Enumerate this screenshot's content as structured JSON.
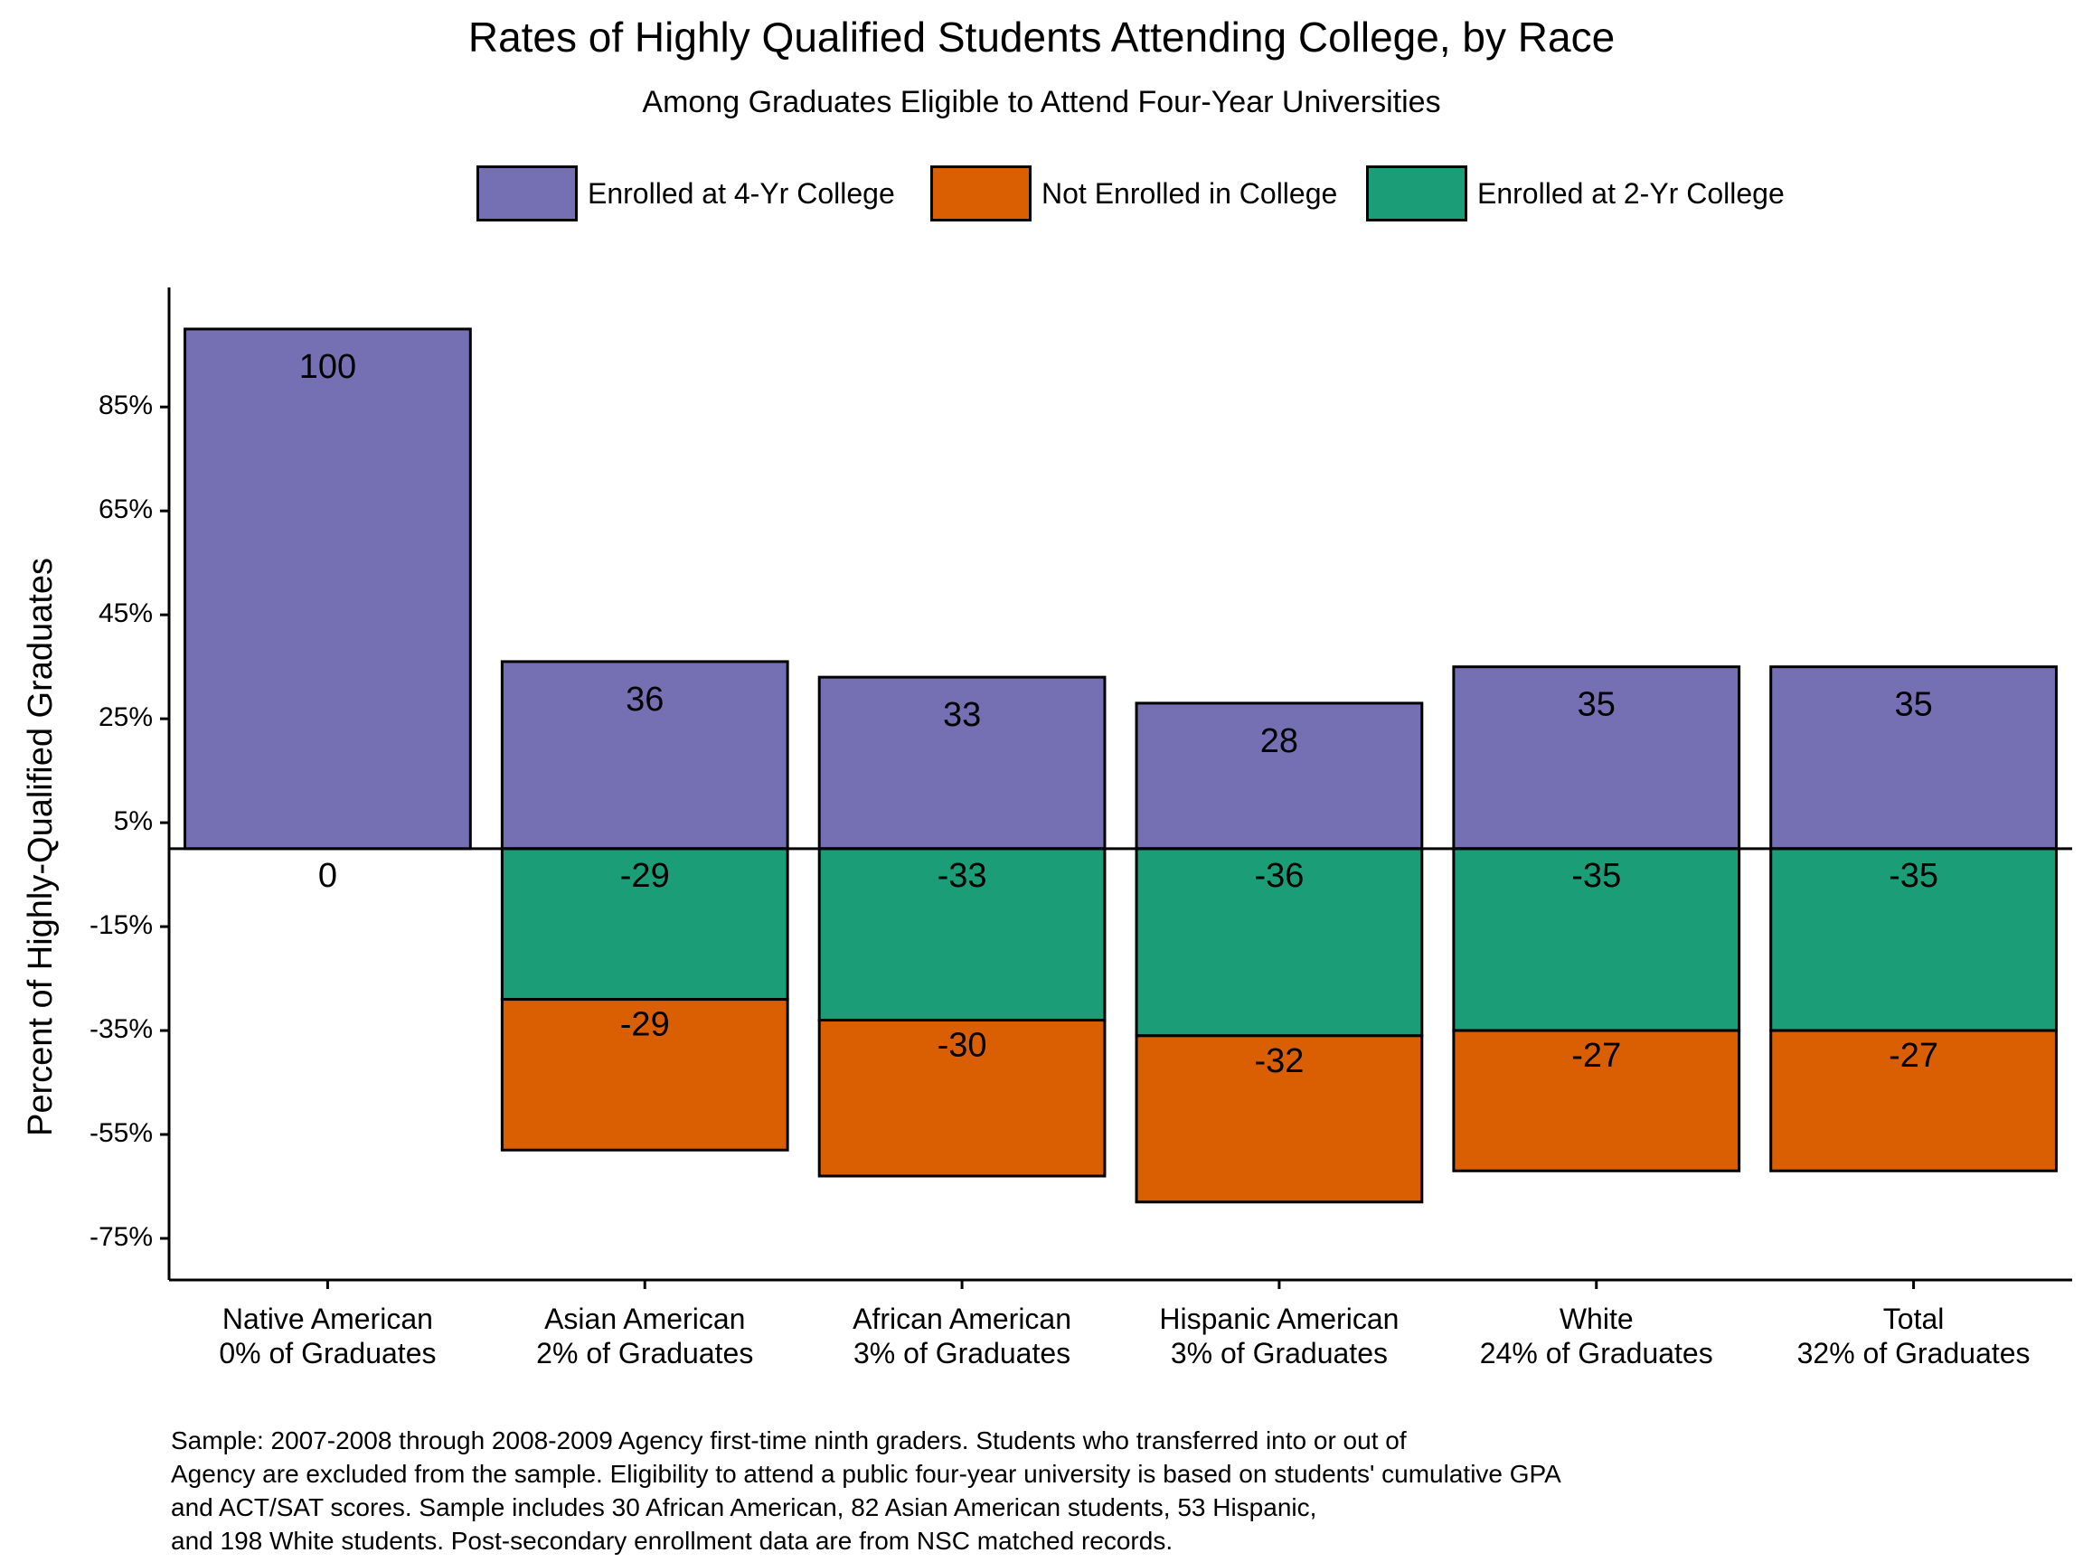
{
  "chart_data": {
    "type": "bar",
    "stacked": true,
    "title": "Rates of Highly Qualified Students Attending College, by Race",
    "subtitle": "Among Graduates Eligible to Attend Four-Year Universities",
    "ylabel": "Percent of Highly-Qualified Graduates",
    "xlabel": "",
    "ylim": [
      -83,
      108
    ],
    "yticks": [
      85,
      65,
      45,
      25,
      5,
      -15,
      -35,
      -55,
      -75
    ],
    "ytick_labels": [
      "85%",
      "65%",
      "45%",
      "25%",
      "5%",
      "-15%",
      "-35%",
      "-55%",
      "-75%"
    ],
    "categories": [
      {
        "name": "Native American",
        "share": "0% of Graduates"
      },
      {
        "name": "Asian American",
        "share": "2% of Graduates"
      },
      {
        "name": "African American",
        "share": "3% of Graduates"
      },
      {
        "name": "Hispanic American",
        "share": "3% of Graduates"
      },
      {
        "name": "White",
        "share": "24% of Graduates"
      },
      {
        "name": "Total",
        "share": "32% of Graduates"
      }
    ],
    "legend_position": "top",
    "series": [
      {
        "name": "Enrolled at 4-Yr College",
        "color": "#7570B3",
        "values": [
          100,
          36,
          33,
          28,
          35,
          35
        ],
        "labels": [
          "100",
          "36",
          "33",
          "28",
          "35",
          "35"
        ]
      },
      {
        "name": "Not Enrolled in College",
        "color": "#D95F02",
        "values": [
          0,
          -29,
          -30,
          -32,
          -27,
          -27
        ],
        "labels": [
          "",
          "-29",
          "-30",
          "-32",
          "-27",
          "-27"
        ]
      },
      {
        "name": "Enrolled at 2-Yr College",
        "color": "#1B9E77",
        "values": [
          0,
          -29,
          -33,
          -36,
          -35,
          -35
        ],
        "labels": [
          "0",
          "-29",
          "-33",
          "-36",
          "-35",
          "-35"
        ]
      }
    ]
  },
  "caption": [
    "Sample: 2007-2008 through 2008-2009 Agency first-time ninth graders. Students who transferred into or out of",
    "Agency are excluded from the sample. Eligibility to attend a public four-year university is based on students' cumulative GPA",
    "and ACT/SAT scores. Sample includes 30 African American, 82 Asian American students, 53 Hispanic,",
    "and 198 White students. Post-secondary enrollment data are from NSC matched records."
  ]
}
